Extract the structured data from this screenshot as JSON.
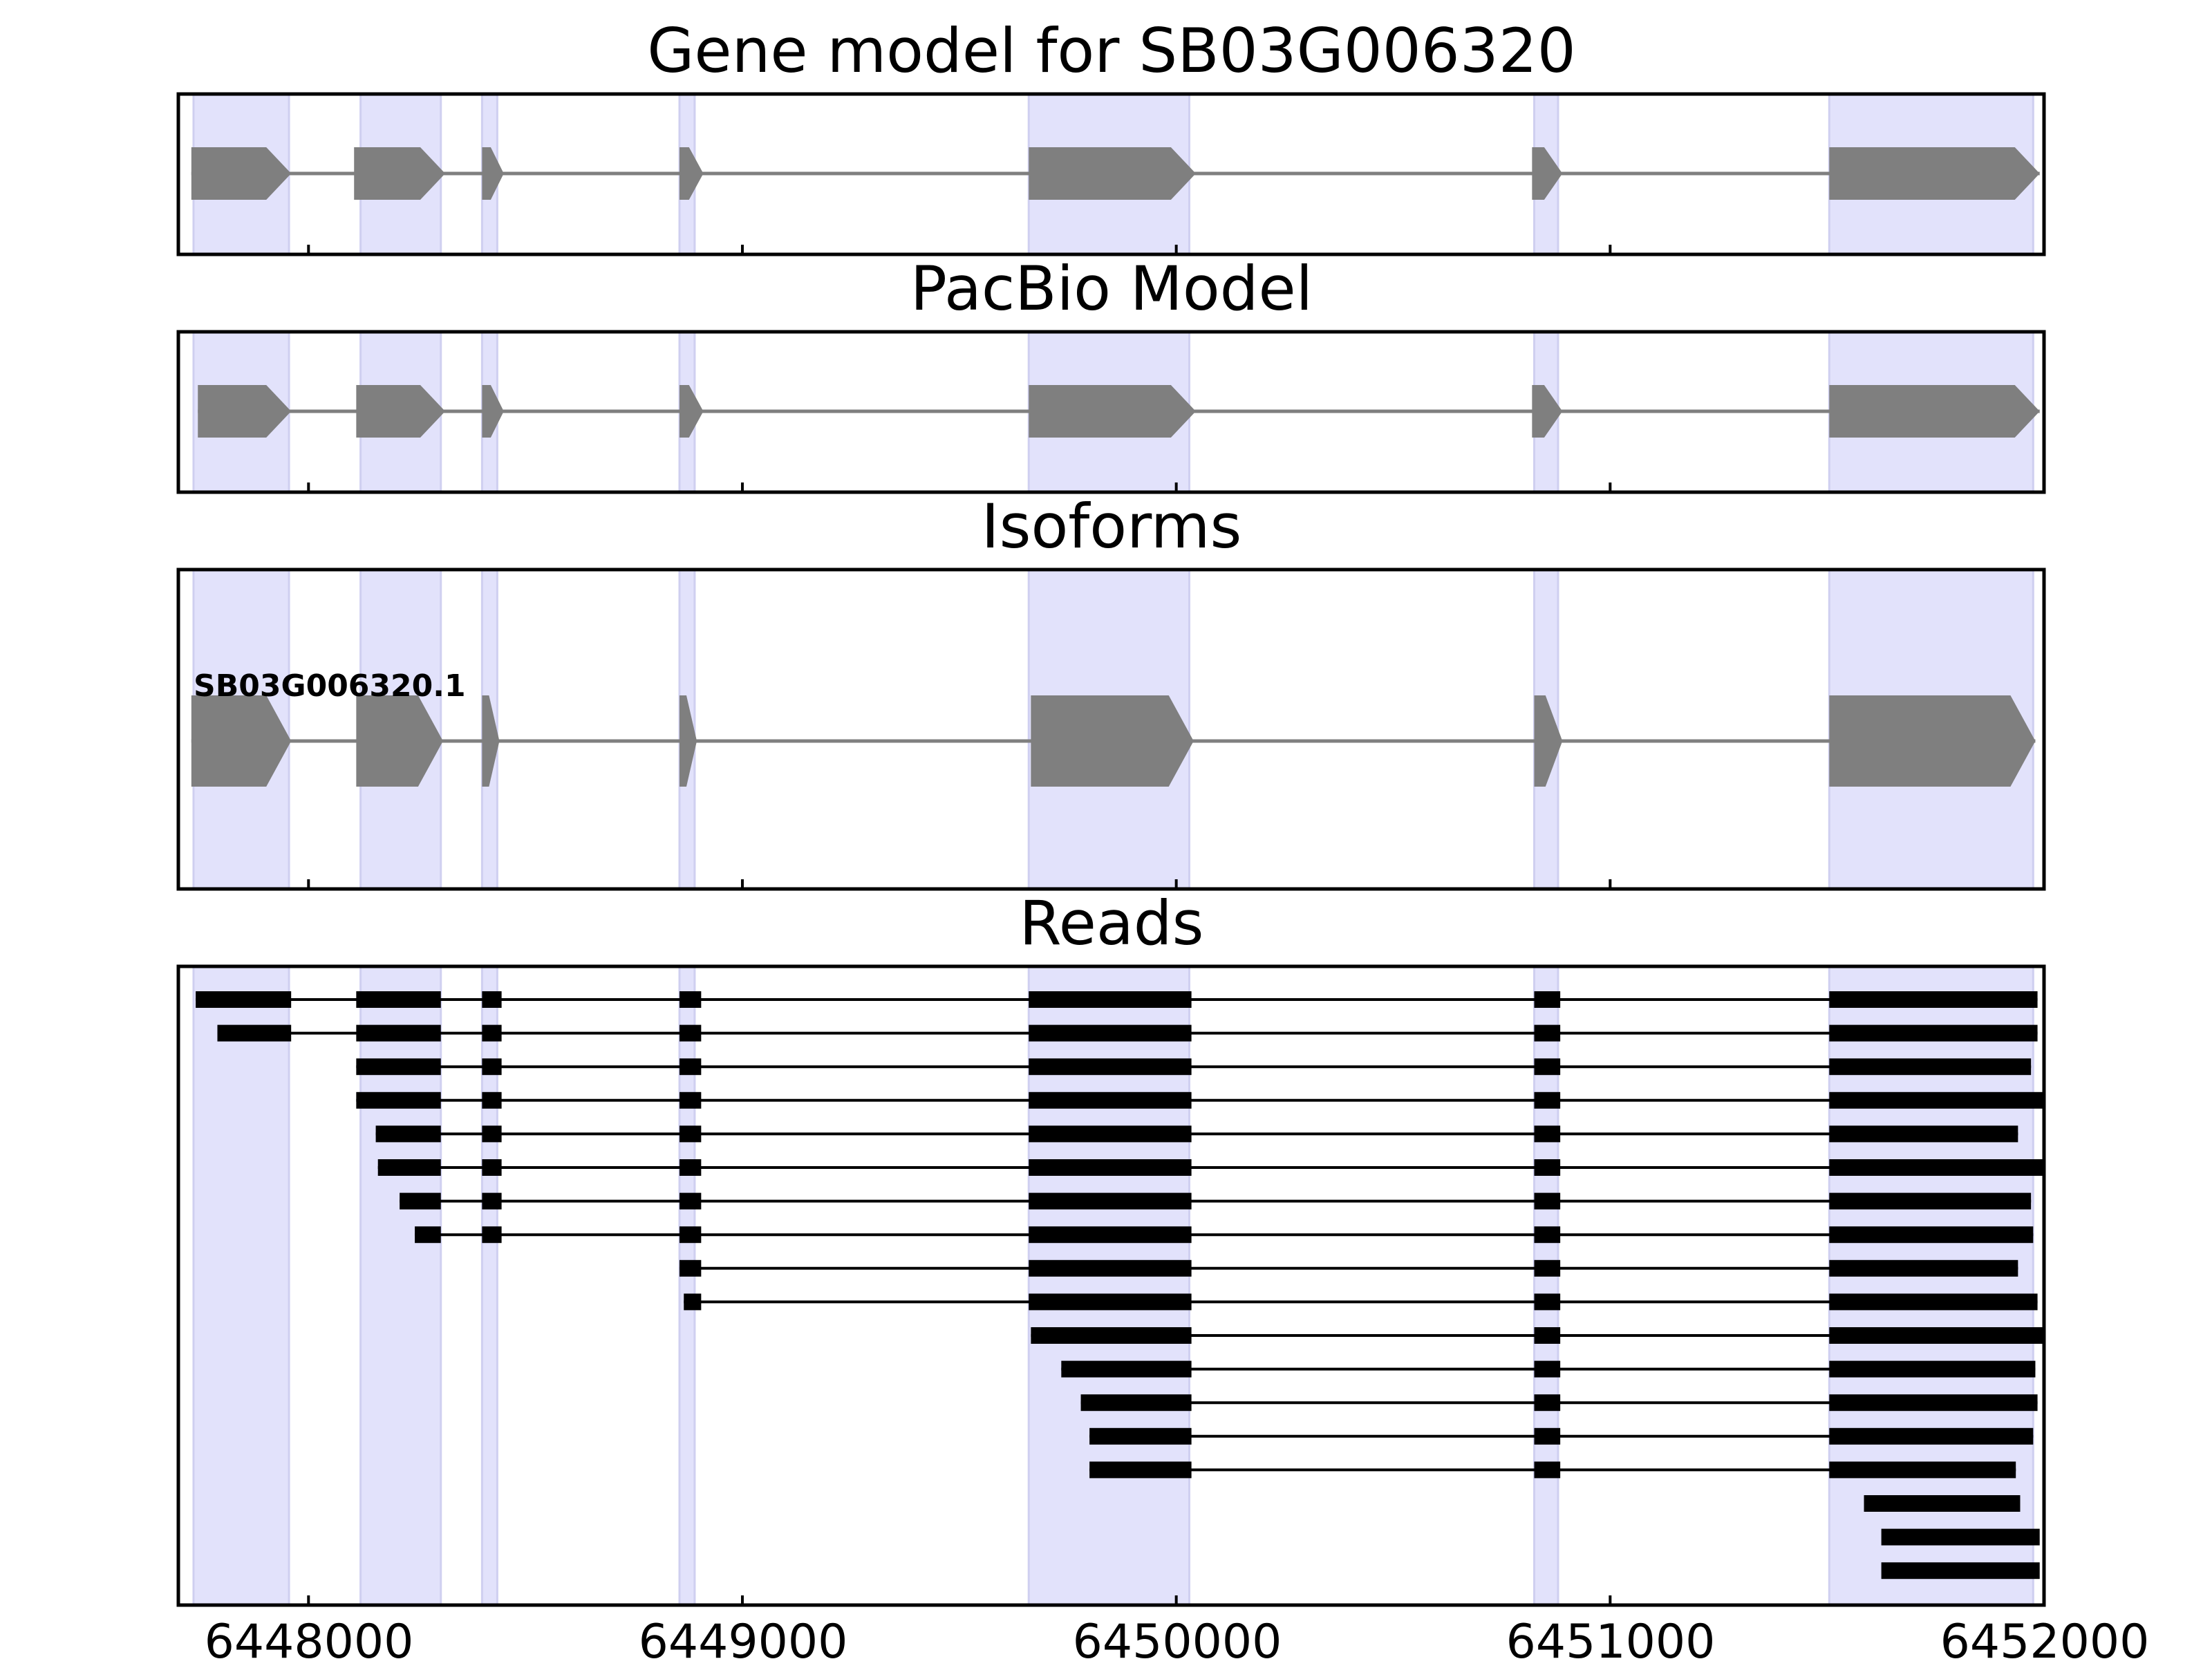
{
  "chart_data": {
    "type": "gene-structure-track",
    "x_axis": {
      "range": [
        6447700,
        6452000
      ],
      "ticks": [
        6448000,
        6449000,
        6450000,
        6451000,
        6452000
      ],
      "tick_labels": [
        "6448000",
        "6449000",
        "6450000",
        "6451000",
        "6452000"
      ]
    },
    "exon_regions": [
      [
        6447735,
        6447955
      ],
      [
        6448120,
        6448305
      ],
      [
        6448400,
        6448435
      ],
      [
        6448855,
        6448890
      ],
      [
        6449660,
        6450030
      ],
      [
        6450825,
        6450880
      ],
      [
        6451505,
        6451975
      ]
    ],
    "colors": {
      "exon_shading": "#e2e2fb",
      "feature": "#7f7f7f",
      "read": "#000000",
      "frame": "#000000"
    },
    "panels": [
      {
        "id": "gene-model",
        "title": "Gene model for SB03G006320",
        "strand": "+",
        "exons": [
          [
            6447730,
            6447960
          ],
          [
            6448105,
            6448315
          ],
          [
            6448400,
            6448450
          ],
          [
            6448855,
            6448910
          ],
          [
            6449660,
            6450045
          ],
          [
            6450820,
            6450890
          ],
          [
            6451505,
            6451990
          ]
        ]
      },
      {
        "id": "pacbio-model",
        "title": "PacBio Model",
        "strand": "+",
        "exons": [
          [
            6447745,
            6447960
          ],
          [
            6448110,
            6448315
          ],
          [
            6448400,
            6448450
          ],
          [
            6448855,
            6448910
          ],
          [
            6449660,
            6450045
          ],
          [
            6450820,
            6450890
          ],
          [
            6451505,
            6451990
          ]
        ]
      },
      {
        "id": "isoforms",
        "title": "Isoforms",
        "isoforms": [
          {
            "name": "SB03G006320.1",
            "strand": "+",
            "exons": [
              [
                6447730,
                6447960
              ],
              [
                6448110,
                6448310
              ],
              [
                6448400,
                6448440
              ],
              [
                6448855,
                6448895
              ],
              [
                6449665,
                6450040
              ],
              [
                6450825,
                6450890
              ],
              [
                6451505,
                6451980
              ]
            ]
          }
        ]
      },
      {
        "id": "reads",
        "title": "Reads",
        "reads": [
          [
            [
              6447740,
              6447960
            ],
            [
              6448110,
              6448305
            ],
            [
              6448400,
              6448445
            ],
            [
              6448855,
              6448905
            ],
            [
              6449660,
              6450035
            ],
            [
              6450825,
              6450885
            ],
            [
              6451505,
              6451985
            ]
          ],
          [
            [
              6447790,
              6447960
            ],
            [
              6448110,
              6448305
            ],
            [
              6448400,
              6448445
            ],
            [
              6448855,
              6448905
            ],
            [
              6449660,
              6450035
            ],
            [
              6450825,
              6450885
            ],
            [
              6451505,
              6451985
            ]
          ],
          [
            [
              6448110,
              6448305
            ],
            [
              6448400,
              6448445
            ],
            [
              6448855,
              6448905
            ],
            [
              6449660,
              6450035
            ],
            [
              6450825,
              6450885
            ],
            [
              6451505,
              6451970
            ]
          ],
          [
            [
              6448110,
              6448305
            ],
            [
              6448400,
              6448445
            ],
            [
              6448855,
              6448905
            ],
            [
              6449660,
              6450035
            ],
            [
              6450825,
              6450885
            ],
            [
              6451505,
              6452000
            ]
          ],
          [
            [
              6448155,
              6448305
            ],
            [
              6448400,
              6448445
            ],
            [
              6448855,
              6448905
            ],
            [
              6449660,
              6450035
            ],
            [
              6450825,
              6450885
            ],
            [
              6451505,
              6451940
            ]
          ],
          [
            [
              6448160,
              6448305
            ],
            [
              6448400,
              6448445
            ],
            [
              6448855,
              6448905
            ],
            [
              6449660,
              6450035
            ],
            [
              6450825,
              6450885
            ],
            [
              6451505,
              6452000
            ]
          ],
          [
            [
              6448210,
              6448305
            ],
            [
              6448400,
              6448445
            ],
            [
              6448855,
              6448905
            ],
            [
              6449660,
              6450035
            ],
            [
              6450825,
              6450885
            ],
            [
              6451505,
              6451970
            ]
          ],
          [
            [
              6448245,
              6448305
            ],
            [
              6448400,
              6448445
            ],
            [
              6448855,
              6448905
            ],
            [
              6449660,
              6450035
            ],
            [
              6450825,
              6450885
            ],
            [
              6451505,
              6451975
            ]
          ],
          [
            [
              6448855,
              6448905
            ],
            [
              6449660,
              6450035
            ],
            [
              6450825,
              6450885
            ],
            [
              6451505,
              6451940
            ]
          ],
          [
            [
              6448865,
              6448905
            ],
            [
              6449660,
              6450035
            ],
            [
              6450825,
              6450885
            ],
            [
              6451505,
              6451985
            ]
          ],
          [
            [
              6449665,
              6450035
            ],
            [
              6450825,
              6450885
            ],
            [
              6451505,
              6452000
            ]
          ],
          [
            [
              6449735,
              6450035
            ],
            [
              6450825,
              6450885
            ],
            [
              6451505,
              6451980
            ]
          ],
          [
            [
              6449780,
              6450035
            ],
            [
              6450825,
              6450885
            ],
            [
              6451505,
              6451985
            ]
          ],
          [
            [
              6449800,
              6450035
            ],
            [
              6450825,
              6450885
            ],
            [
              6451505,
              6451975
            ]
          ],
          [
            [
              6449800,
              6450035
            ],
            [
              6450825,
              6450885
            ],
            [
              6451505,
              6451935
            ]
          ],
          [
            [
              6451585,
              6451945
            ]
          ],
          [
            [
              6451625,
              6451990
            ]
          ],
          [
            [
              6451625,
              6451990
            ]
          ]
        ]
      }
    ]
  }
}
